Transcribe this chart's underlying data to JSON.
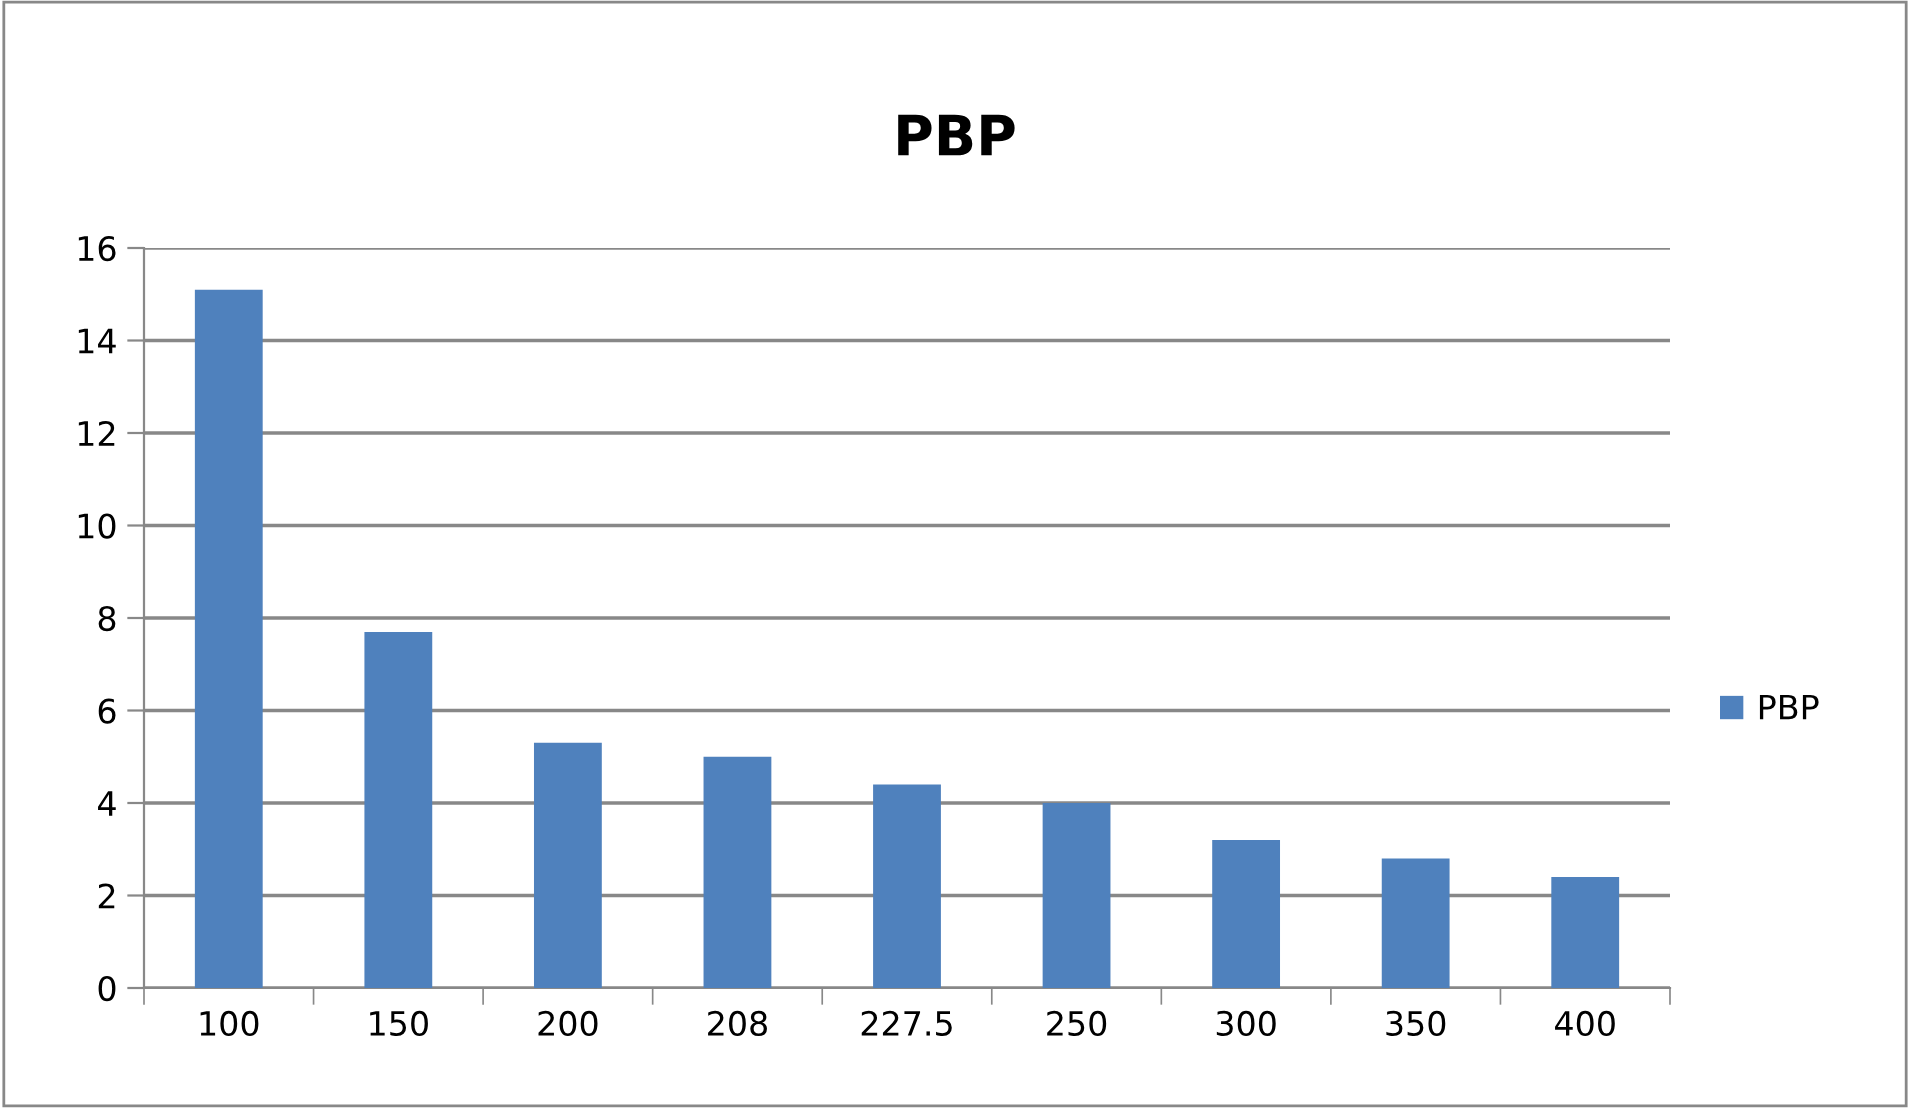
{
  "chart_data": {
    "type": "bar",
    "title": "PBP",
    "categories": [
      "100",
      "150",
      "200",
      "208",
      "227.5",
      "250",
      "300",
      "350",
      "400"
    ],
    "series": [
      {
        "name": "PBP",
        "color": "#4f81bd",
        "values": [
          15.1,
          7.7,
          5.3,
          5.0,
          4.4,
          4.0,
          3.2,
          2.8,
          2.4
        ]
      }
    ],
    "ylim": [
      0,
      16
    ],
    "yticks": [
      0,
      2,
      4,
      6,
      8,
      10,
      12,
      14,
      16
    ],
    "grid": "y",
    "legend": "right"
  }
}
